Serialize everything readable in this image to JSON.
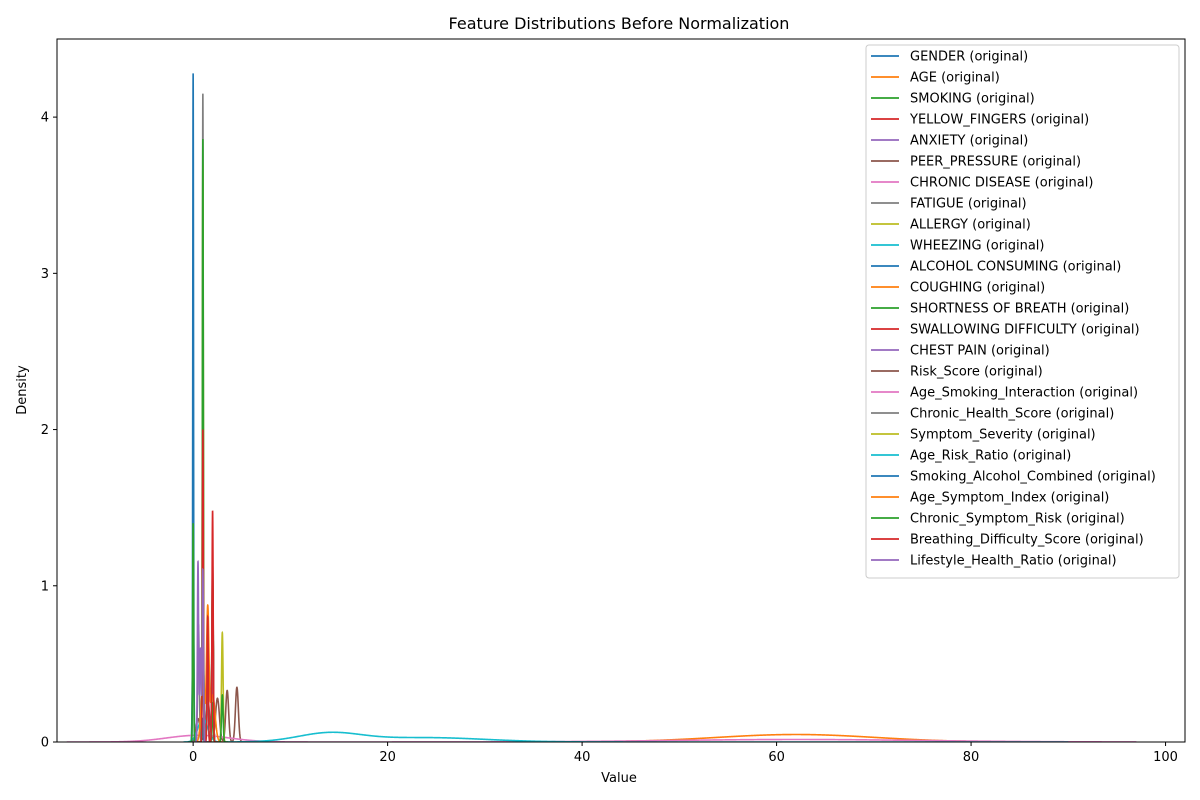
{
  "chart_data": {
    "type": "line",
    "title": "Feature Distributions Before Normalization",
    "xlabel": "Value",
    "ylabel": "Density",
    "xlim": [
      -14,
      102
    ],
    "ylim": [
      0,
      4.5
    ],
    "x_ticks": [
      0,
      20,
      40,
      60,
      80,
      100
    ],
    "y_ticks": [
      0,
      1,
      2,
      3,
      4
    ],
    "grid": false,
    "legend_position": "top-right",
    "series": [
      {
        "name": "GENDER (original)",
        "color": "#1f77b4",
        "peaks": [
          {
            "mu": 0,
            "sigma": 0.07,
            "h": 0.9
          },
          {
            "mu": 1,
            "sigma": 0.07,
            "h": 0.95
          }
        ],
        "range": [
          -0.6,
          1.6
        ]
      },
      {
        "name": "AGE (original)",
        "color": "#ff7f0e",
        "peaks": [
          {
            "mu": 62,
            "sigma": 8.2,
            "h": 0.048
          }
        ],
        "range": [
          33,
          90
        ]
      },
      {
        "name": "SMOKING (original)",
        "color": "#2ca02c",
        "peaks": [
          {
            "mu": 1,
            "sigma": 0.07,
            "h": 0.95
          },
          {
            "mu": 2,
            "sigma": 0.07,
            "h": 0.9
          }
        ],
        "range": [
          0.4,
          2.6
        ]
      },
      {
        "name": "YELLOW_FINGERS (original)",
        "color": "#d62728",
        "peaks": [
          {
            "mu": 1,
            "sigma": 0.07,
            "h": 0.85
          },
          {
            "mu": 2,
            "sigma": 0.07,
            "h": 1.0
          }
        ],
        "range": [
          0.4,
          2.6
        ]
      },
      {
        "name": "ANXIETY (original)",
        "color": "#9467bd",
        "peaks": [
          {
            "mu": 1,
            "sigma": 0.07,
            "h": 1.0
          },
          {
            "mu": 2,
            "sigma": 0.07,
            "h": 0.9
          }
        ],
        "range": [
          0.4,
          2.6
        ]
      },
      {
        "name": "PEER_PRESSURE (original)",
        "color": "#8c564b",
        "peaks": [
          {
            "mu": 1,
            "sigma": 0.07,
            "h": 0.95
          },
          {
            "mu": 2,
            "sigma": 0.07,
            "h": 0.95
          }
        ],
        "range": [
          0.4,
          2.6
        ]
      },
      {
        "name": "CHRONIC DISEASE (original)",
        "color": "#e377c2",
        "peaks": [
          {
            "mu": 1,
            "sigma": 0.07,
            "h": 0.95
          },
          {
            "mu": 2,
            "sigma": 0.07,
            "h": 0.95
          }
        ],
        "range": [
          0.4,
          2.6
        ]
      },
      {
        "name": "FATIGUE  (original)",
        "color": "#7f7f7f",
        "peaks": [
          {
            "mu": 1,
            "sigma": 0.07,
            "h": 0.7
          },
          {
            "mu": 2,
            "sigma": 0.07,
            "h": 1.15
          }
        ],
        "range": [
          0.4,
          2.6
        ]
      },
      {
        "name": "ALLERGY  (original)",
        "color": "#bcbd22",
        "peaks": [
          {
            "mu": 1,
            "sigma": 0.07,
            "h": 0.85
          },
          {
            "mu": 2,
            "sigma": 0.07,
            "h": 1.0
          }
        ],
        "range": [
          0.4,
          2.6
        ]
      },
      {
        "name": "WHEEZING (original)",
        "color": "#17becf",
        "peaks": [
          {
            "mu": 1,
            "sigma": 0.07,
            "h": 0.9
          },
          {
            "mu": 2,
            "sigma": 0.07,
            "h": 0.95
          }
        ],
        "range": [
          0.4,
          2.6
        ]
      },
      {
        "name": "ALCOHOL CONSUMING (original)",
        "color": "#1f77b4",
        "peaks": [
          {
            "mu": 1,
            "sigma": 0.07,
            "h": 0.85
          },
          {
            "mu": 2,
            "sigma": 0.07,
            "h": 1.0
          }
        ],
        "range": [
          0.4,
          2.6
        ]
      },
      {
        "name": "COUGHING (original)",
        "color": "#ff7f0e",
        "peaks": [
          {
            "mu": 1,
            "sigma": 0.07,
            "h": 0.85
          },
          {
            "mu": 2,
            "sigma": 0.07,
            "h": 1.0
          }
        ],
        "range": [
          0.4,
          2.6
        ]
      },
      {
        "name": "SHORTNESS OF BREATH (original)",
        "color": "#2ca02c",
        "peaks": [
          {
            "mu": 1,
            "sigma": 0.07,
            "h": 0.7
          },
          {
            "mu": 2,
            "sigma": 0.07,
            "h": 1.1
          }
        ],
        "range": [
          0.4,
          2.6
        ]
      },
      {
        "name": "SWALLOWING DIFFICULTY (original)",
        "color": "#d62728",
        "peaks": [
          {
            "mu": 1,
            "sigma": 0.07,
            "h": 1.0
          },
          {
            "mu": 2,
            "sigma": 0.07,
            "h": 0.85
          }
        ],
        "range": [
          0.4,
          2.6
        ]
      },
      {
        "name": "CHEST PAIN (original)",
        "color": "#9467bd",
        "peaks": [
          {
            "mu": 1,
            "sigma": 0.07,
            "h": 0.9
          },
          {
            "mu": 2,
            "sigma": 0.07,
            "h": 0.95
          }
        ],
        "range": [
          0.4,
          2.6
        ]
      },
      {
        "name": "Risk_Score (original)",
        "color": "#8c564b",
        "peaks": [
          {
            "mu": 1.5,
            "sigma": 0.2,
            "h": 0.27
          },
          {
            "mu": 2.5,
            "sigma": 0.2,
            "h": 0.28
          },
          {
            "mu": 3.5,
            "sigma": 0.15,
            "h": 0.33
          },
          {
            "mu": 4.5,
            "sigma": 0.15,
            "h": 0.35
          },
          {
            "mu": 0.5,
            "sigma": 0.2,
            "h": 0.15
          }
        ],
        "range": [
          -0.5,
          5.5
        ]
      },
      {
        "name": "Age_Smoking_Interaction (original)",
        "color": "#e377c2",
        "peaks": [
          {
            "mu": 0.5,
            "sigma": 3.2,
            "h": 0.043
          },
          {
            "mu": 62,
            "sigma": 13,
            "h": 0.016
          }
        ],
        "range": [
          -13,
          97
        ]
      },
      {
        "name": "Chronic_Health_Score (original)",
        "color": "#7f7f7f",
        "peaks": [
          {
            "mu": 1,
            "sigma": 0.045,
            "h": 4.15
          },
          {
            "mu": 0.55,
            "sigma": 0.08,
            "h": 0.75
          },
          {
            "mu": 1.45,
            "sigma": 0.08,
            "h": 0.45
          }
        ],
        "range": [
          -0.2,
          2.2
        ]
      },
      {
        "name": "Symptom_Severity (original)",
        "color": "#bcbd22",
        "peaks": [
          {
            "mu": 1,
            "sigma": 0.05,
            "h": 3.7
          },
          {
            "mu": 2,
            "sigma": 0.08,
            "h": 0.28
          },
          {
            "mu": 3,
            "sigma": 0.08,
            "h": 0.7
          }
        ],
        "range": [
          0.2,
          3.8
        ]
      },
      {
        "name": "Age_Risk_Ratio (original)",
        "color": "#17becf",
        "peaks": [
          {
            "mu": 14,
            "sigma": 3.2,
            "h": 0.055
          },
          {
            "mu": 24,
            "sigma": 6,
            "h": 0.028
          },
          {
            "mu": 1,
            "sigma": 0.5,
            "h": 0.15
          }
        ],
        "range": [
          -1,
          90
        ]
      },
      {
        "name": "Smoking_Alcohol_Combined (original)",
        "color": "#1f77b4",
        "peaks": [
          {
            "mu": 0,
            "sigma": 0.04,
            "h": 4.28
          },
          {
            "mu": 1,
            "sigma": 0.05,
            "h": 0.15
          }
        ],
        "range": [
          -0.5,
          1.5
        ]
      },
      {
        "name": "Age_Symptom_Index (original)",
        "color": "#ff7f0e",
        "peaks": [
          {
            "mu": 1.5,
            "sigma": 0.12,
            "h": 0.82
          },
          {
            "mu": 2.0,
            "sigma": 0.25,
            "h": 0.3
          },
          {
            "mu": 1.0,
            "sigma": 0.2,
            "h": 0.35
          }
        ],
        "range": [
          0,
          3.2
        ]
      },
      {
        "name": "Chronic_Symptom_Risk (original)",
        "color": "#2ca02c",
        "peaks": [
          {
            "mu": 0,
            "sigma": 0.05,
            "h": 1.4
          },
          {
            "mu": 1,
            "sigma": 0.045,
            "h": 3.86
          },
          {
            "mu": 2,
            "sigma": 0.06,
            "h": 0.25
          },
          {
            "mu": 3,
            "sigma": 0.08,
            "h": 0.3
          }
        ],
        "range": [
          -0.5,
          3.6
        ]
      },
      {
        "name": "Breathing_Difficulty_Score (original)",
        "color": "#d62728",
        "peaks": [
          {
            "mu": 1,
            "sigma": 0.05,
            "h": 2.0
          },
          {
            "mu": 2,
            "sigma": 0.06,
            "h": 1.48
          },
          {
            "mu": 1.5,
            "sigma": 0.06,
            "h": 0.8
          }
        ],
        "range": [
          0.4,
          2.6
        ]
      },
      {
        "name": "Lifestyle_Health_Ratio (original)",
        "color": "#9467bd",
        "peaks": [
          {
            "mu": 0.5,
            "sigma": 0.06,
            "h": 1.15
          },
          {
            "mu": 1,
            "sigma": 0.06,
            "h": 1.1
          },
          {
            "mu": 0.75,
            "sigma": 0.08,
            "h": 0.6
          }
        ],
        "range": [
          0,
          1.6
        ]
      }
    ]
  }
}
